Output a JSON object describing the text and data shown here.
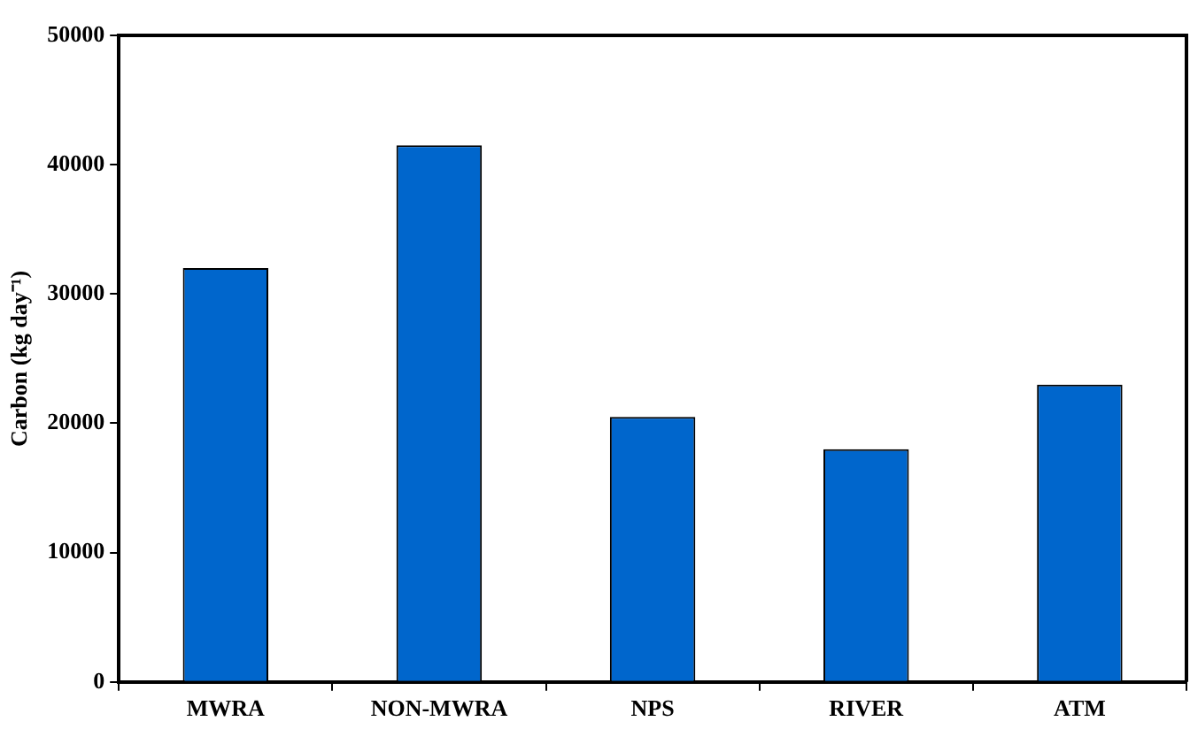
{
  "chart_data": {
    "type": "bar",
    "ylabel": "Carbon (kg day⁻¹)",
    "categories": [
      "MWRA",
      "NON-MWRA",
      "NPS",
      "RIVER",
      "ATM"
    ],
    "values": [
      32000,
      41500,
      20500,
      18000,
      23000
    ],
    "color": "#0066cc",
    "ylim": [
      0,
      50000
    ],
    "yticks": [
      0,
      10000,
      20000,
      30000,
      40000,
      50000
    ],
    "grid": false,
    "legend": false
  }
}
